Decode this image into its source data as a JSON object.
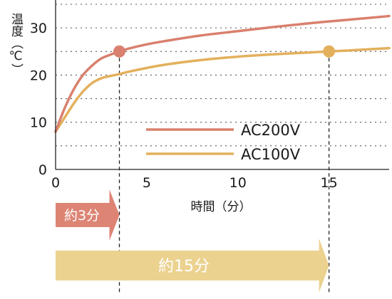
{
  "chart_data": {
    "type": "line",
    "xlabel": "時間（分）",
    "ylabel": "温度（℃）",
    "xlim": [
      0,
      18.3
    ],
    "ylim": [
      0,
      35.3
    ],
    "x_ticks": [
      "0",
      "5",
      "10",
      "15"
    ],
    "y_ticks": [
      "0",
      "10",
      "20",
      "30"
    ],
    "grid": "horizontal dotted",
    "legend_position": "center-right",
    "series": [
      {
        "name": "AC200V",
        "color": "#d9806e",
        "x": [
          0,
          0.5,
          1,
          1.5,
          2,
          2.5,
          3,
          3.5,
          4,
          5,
          6,
          8,
          10,
          12,
          14,
          16,
          18.3
        ],
        "y": [
          8,
          13,
          17,
          20,
          22,
          23.5,
          24.3,
          25,
          25.6,
          26.5,
          27.2,
          28.4,
          29.3,
          30.2,
          31,
          31.7,
          32.5
        ]
      },
      {
        "name": "AC100V",
        "color": "#e3b05c",
        "x": [
          0,
          0.5,
          1,
          1.5,
          2,
          2.5,
          3,
          3.5,
          4,
          5,
          6,
          8,
          10,
          12,
          14,
          15,
          16,
          18.3
        ],
        "y": [
          8,
          11,
          14,
          16.5,
          18.3,
          19.3,
          19.8,
          20.2,
          20.7,
          21.5,
          22.2,
          23.2,
          23.9,
          24.4,
          24.8,
          25,
          25.2,
          25.7
        ]
      }
    ],
    "markers": [
      {
        "series": "AC200V",
        "x": 3.5,
        "y": 25
      },
      {
        "series": "AC100V",
        "x": 15,
        "y": 25
      }
    ],
    "annotations": [
      {
        "label": "約3分",
        "x_end": 3.5,
        "color": "#dd8474"
      },
      {
        "label": "約15分",
        "x_end": 15,
        "color": "#ebd28f"
      }
    ]
  }
}
